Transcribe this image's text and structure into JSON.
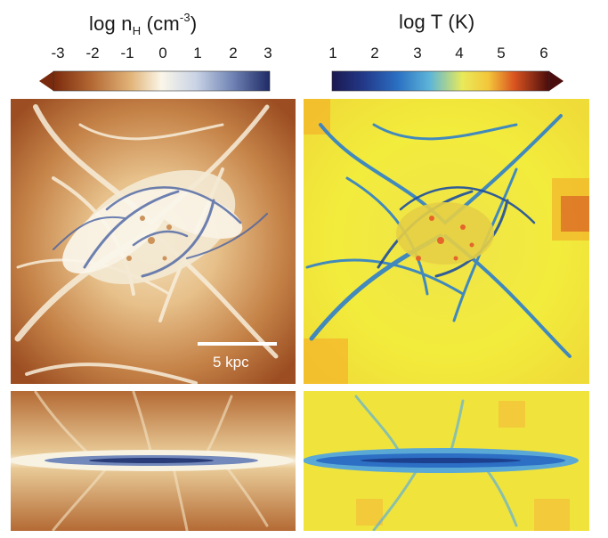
{
  "density_colorbar": {
    "title_prefix": "log n",
    "title_sub": "H",
    "title_unit_open": " (cm",
    "title_sup": "-3",
    "title_unit_close": ")",
    "ticks": [
      "-3",
      "-2",
      "-1",
      "0",
      "1",
      "2",
      "3"
    ]
  },
  "temperature_colorbar": {
    "title": "log T (K)",
    "ticks": [
      "1",
      "2",
      "3",
      "4",
      "5",
      "6"
    ]
  },
  "scale_bar": {
    "label": "5 kpc"
  },
  "colors": {
    "density_low": "#8a3a16",
    "density_mid": "#f6f0e0",
    "density_high": "#1e2f6e",
    "temperature_low": "#1b1a55",
    "temperature_mid": "#f2ec3a",
    "temperature_high": "#5e1010"
  }
}
